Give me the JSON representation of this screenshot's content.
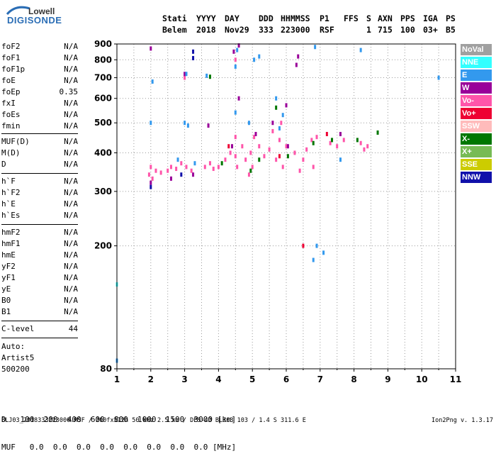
{
  "logo": {
    "line1": "Lowell",
    "line2": "DIGISONDE"
  },
  "header": {
    "row1": [
      "Stati",
      "YYYY",
      "DAY",
      "DDD",
      "HHMMSS",
      "P1",
      "FFS",
      "S",
      "AXN",
      "PPS",
      "IGA",
      "PS"
    ],
    "row2": [
      "Belem",
      "2018",
      "Nov29",
      "333",
      "223000",
      "RSF",
      "1",
      "715",
      "100",
      "03+",
      "B5"
    ]
  },
  "params": {
    "group1": [
      {
        "name": "foF2",
        "value": "N/A"
      },
      {
        "name": "foF1",
        "value": "N/A"
      },
      {
        "name": "foF1p",
        "value": "N/A"
      },
      {
        "name": "foE",
        "value": "N/A"
      },
      {
        "name": "foEp",
        "value": "0.35"
      },
      {
        "name": "fxI",
        "value": "N/A"
      },
      {
        "name": "foEs",
        "value": "N/A"
      },
      {
        "name": "fmin",
        "value": "N/A"
      }
    ],
    "group2": [
      {
        "name": "MUF(D)",
        "value": "N/A"
      },
      {
        "name": "M(D)",
        "value": "N/A"
      },
      {
        "name": "D",
        "value": "N/A"
      }
    ],
    "group3": [
      {
        "name": "h`F",
        "value": "N/A"
      },
      {
        "name": "h`F2",
        "value": "N/A"
      },
      {
        "name": "h`E",
        "value": "N/A"
      },
      {
        "name": "h`Es",
        "value": "N/A"
      }
    ],
    "group4": [
      {
        "name": "hmF2",
        "value": "N/A"
      },
      {
        "name": "hmF1",
        "value": "N/A"
      },
      {
        "name": "hmE",
        "value": "N/A"
      },
      {
        "name": "yF2",
        "value": "N/A"
      },
      {
        "name": "yF1",
        "value": "N/A"
      },
      {
        "name": "yE",
        "value": "N/A"
      },
      {
        "name": "B0",
        "value": "N/A"
      },
      {
        "name": "B1",
        "value": "N/A"
      }
    ],
    "clevel": {
      "name": "C-level",
      "value": "44"
    }
  },
  "auto": {
    "label": "Auto:",
    "line2": "Artist5",
    "line3": "500200"
  },
  "legend": [
    {
      "label": "NoVal",
      "color": "#a0a0a0"
    },
    {
      "label": "NNE",
      "color": "#33ffff"
    },
    {
      "label": "E",
      "color": "#3399ee"
    },
    {
      "label": "W",
      "color": "#990099"
    },
    {
      "label": "Vo-",
      "color": "#ff55aa"
    },
    {
      "label": "Vo+",
      "color": "#ee0033"
    },
    {
      "label": "SSW",
      "color": "#ffbbbb"
    },
    {
      "label": "X-",
      "color": "#007700"
    },
    {
      "label": "X+",
      "color": "#77bb55"
    },
    {
      "label": "SSE",
      "color": "#cccc00"
    },
    {
      "label": "NNW",
      "color": "#1111aa"
    }
  ],
  "dm_table": {
    "row1_label": "D",
    "row1_values": [
      "100",
      "200",
      "400",
      "600",
      "800",
      "1000",
      "1500",
      "3000"
    ],
    "row1_unit": "[km]",
    "row2_label": "MUF",
    "row2_values": [
      "0.0",
      "0.0",
      "0.0",
      "0.0",
      "0.0",
      "0.0",
      "0.0",
      "0.0"
    ],
    "row2_unit": "[MHz]"
  },
  "footer": "BLJ03_2018333223000.RSF / 200fx512h 50 kHz 2.5 km / DPS-4D BLJ03 103 / 1.4 S 311.6 E",
  "version": "Ion2Png v. 1.3.17",
  "chart_data": {
    "type": "scatter",
    "title": "",
    "xlabel": "",
    "ylabel": "",
    "xlim": [
      1,
      11
    ],
    "ylim": [
      80,
      900
    ],
    "x_ticks": [
      "1",
      "2",
      "3",
      "4",
      "5",
      "6",
      "7",
      "8",
      "9",
      "10",
      "11"
    ],
    "y_ticks": [
      "80",
      "200",
      "300",
      "400",
      "500",
      "600",
      "700",
      "800",
      "900"
    ],
    "grid": true,
    "legend_position": "right",
    "series": [
      {
        "name": "Vo-",
        "color": "#ff55aa",
        "points": [
          [
            1.95,
            340
          ],
          [
            2.0,
            360
          ],
          [
            2.05,
            330
          ],
          [
            2.15,
            350
          ],
          [
            2.3,
            345
          ],
          [
            2.5,
            350
          ],
          [
            2.6,
            360
          ],
          [
            2.75,
            355
          ],
          [
            2.9,
            370
          ],
          [
            3.05,
            360
          ],
          [
            3.2,
            350
          ],
          [
            3.6,
            360
          ],
          [
            3.75,
            370
          ],
          [
            3.85,
            355
          ],
          [
            4.0,
            360
          ],
          [
            4.2,
            380
          ],
          [
            4.35,
            400
          ],
          [
            4.5,
            390
          ],
          [
            4.5,
            450
          ],
          [
            4.55,
            360
          ],
          [
            4.7,
            420
          ],
          [
            4.8,
            380
          ],
          [
            4.95,
            400
          ],
          [
            5.0,
            360
          ],
          [
            5.05,
            450
          ],
          [
            5.2,
            420
          ],
          [
            5.35,
            390
          ],
          [
            5.5,
            410
          ],
          [
            5.7,
            380
          ],
          [
            5.8,
            440
          ],
          [
            5.85,
            500
          ],
          [
            5.9,
            360
          ],
          [
            6.0,
            420
          ],
          [
            6.25,
            400
          ],
          [
            6.5,
            380
          ],
          [
            6.6,
            410
          ],
          [
            6.75,
            440
          ],
          [
            6.8,
            360
          ],
          [
            7.3,
            430
          ],
          [
            7.5,
            420
          ],
          [
            7.7,
            440
          ],
          [
            8.2,
            430
          ],
          [
            8.3,
            410
          ],
          [
            8.4,
            420
          ],
          [
            3.0,
            700
          ],
          [
            4.5,
            800
          ],
          [
            6.9,
            450
          ],
          [
            5.6,
            470
          ],
          [
            4.9,
            340
          ],
          [
            6.4,
            350
          ]
        ]
      },
      {
        "name": "W",
        "color": "#990099",
        "points": [
          [
            2.0,
            320
          ],
          [
            3.0,
            720
          ],
          [
            3.25,
            340
          ],
          [
            3.7,
            490
          ],
          [
            4.45,
            850
          ],
          [
            4.6,
            600
          ],
          [
            4.6,
            890
          ],
          [
            5.6,
            500
          ],
          [
            6.0,
            570
          ],
          [
            6.3,
            770
          ],
          [
            6.35,
            820
          ],
          [
            6.05,
            420
          ],
          [
            5.1,
            460
          ],
          [
            4.4,
            420
          ],
          [
            2.0,
            870
          ],
          [
            2.6,
            330
          ],
          [
            7.6,
            460
          ]
        ]
      },
      {
        "name": "E",
        "color": "#3399ee",
        "points": [
          [
            1.0,
            85
          ],
          [
            2.0,
            500
          ],
          [
            2.05,
            680
          ],
          [
            3.0,
            500
          ],
          [
            3.05,
            720
          ],
          [
            3.1,
            490
          ],
          [
            3.65,
            710
          ],
          [
            4.5,
            760
          ],
          [
            4.5,
            540
          ],
          [
            4.55,
            860
          ],
          [
            4.9,
            500
          ],
          [
            5.05,
            800
          ],
          [
            5.2,
            820
          ],
          [
            5.7,
            600
          ],
          [
            5.9,
            530
          ],
          [
            6.85,
            880
          ],
          [
            6.8,
            180
          ],
          [
            6.9,
            200
          ],
          [
            7.1,
            190
          ],
          [
            8.2,
            860
          ],
          [
            10.5,
            700
          ],
          [
            2.8,
            380
          ],
          [
            3.3,
            370
          ],
          [
            5.8,
            480
          ],
          [
            7.6,
            380
          ]
        ]
      },
      {
        "name": "X-",
        "color": "#007700",
        "points": [
          [
            3.75,
            705
          ],
          [
            4.1,
            370
          ],
          [
            5.2,
            380
          ],
          [
            5.7,
            560
          ],
          [
            6.05,
            390
          ],
          [
            6.8,
            430
          ],
          [
            7.35,
            440
          ],
          [
            8.1,
            440
          ],
          [
            8.7,
            465
          ],
          [
            4.95,
            350
          ]
        ]
      },
      {
        "name": "Vo+",
        "color": "#ee0033",
        "points": [
          [
            4.3,
            420
          ],
          [
            5.8,
            390
          ],
          [
            6.5,
            200
          ],
          [
            7.2,
            460
          ]
        ]
      },
      {
        "name": "NNW",
        "color": "#1111aa",
        "points": [
          [
            2.0,
            310
          ],
          [
            2.9,
            340
          ],
          [
            3.25,
            810
          ],
          [
            3.25,
            850
          ]
        ]
      },
      {
        "name": "NNE",
        "color": "#33ffff",
        "points": [
          [
            1.0,
            150
          ]
        ]
      }
    ]
  }
}
